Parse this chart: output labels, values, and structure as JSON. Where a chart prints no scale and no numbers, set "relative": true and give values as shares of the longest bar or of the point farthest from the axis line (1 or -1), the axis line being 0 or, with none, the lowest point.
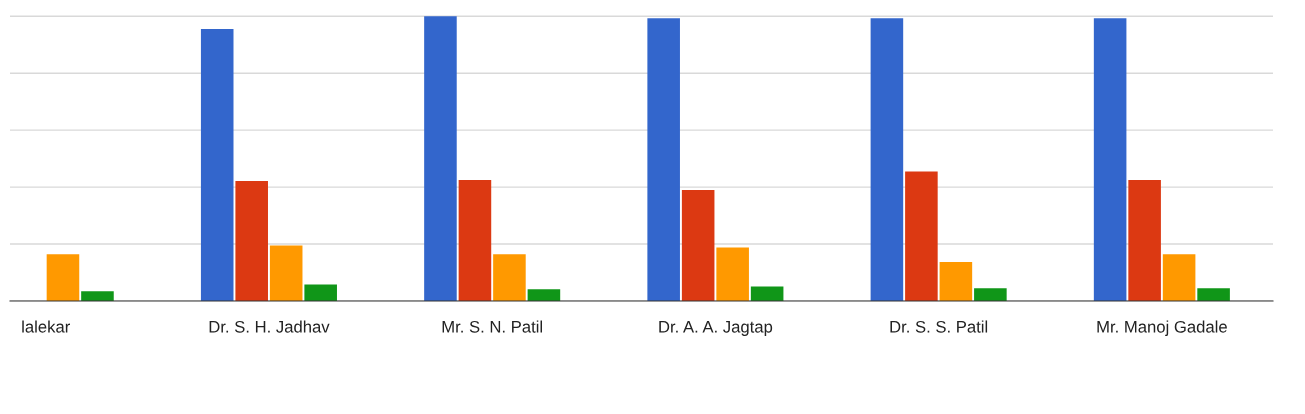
{
  "chart_data": {
    "type": "bar",
    "relative": true,
    "grid": "y",
    "categories": [
      "lalekar",
      "Dr. S. H. Jadhav",
      "Mr. S. N. Patil",
      "Dr. A. A. Jagtap",
      "Dr. S. S. Patil",
      "Mr. Manoj Gadale"
    ],
    "series": [
      {
        "color": "#3366cc",
        "values": [
          null,
          0.955,
          1,
          0.993,
          0.993,
          0.993
        ]
      },
      {
        "color": "#dc3912",
        "values": [
          null,
          0.421,
          0.425,
          0.39,
          0.455,
          0.425
        ]
      },
      {
        "color": "#ff9900",
        "values": [
          0.164,
          0.195,
          0.164,
          0.188,
          0.137,
          0.164
        ]
      },
      {
        "color": "#109618",
        "values": [
          0.034,
          0.058,
          0.041,
          0.051,
          0.045,
          0.045
        ]
      }
    ]
  }
}
